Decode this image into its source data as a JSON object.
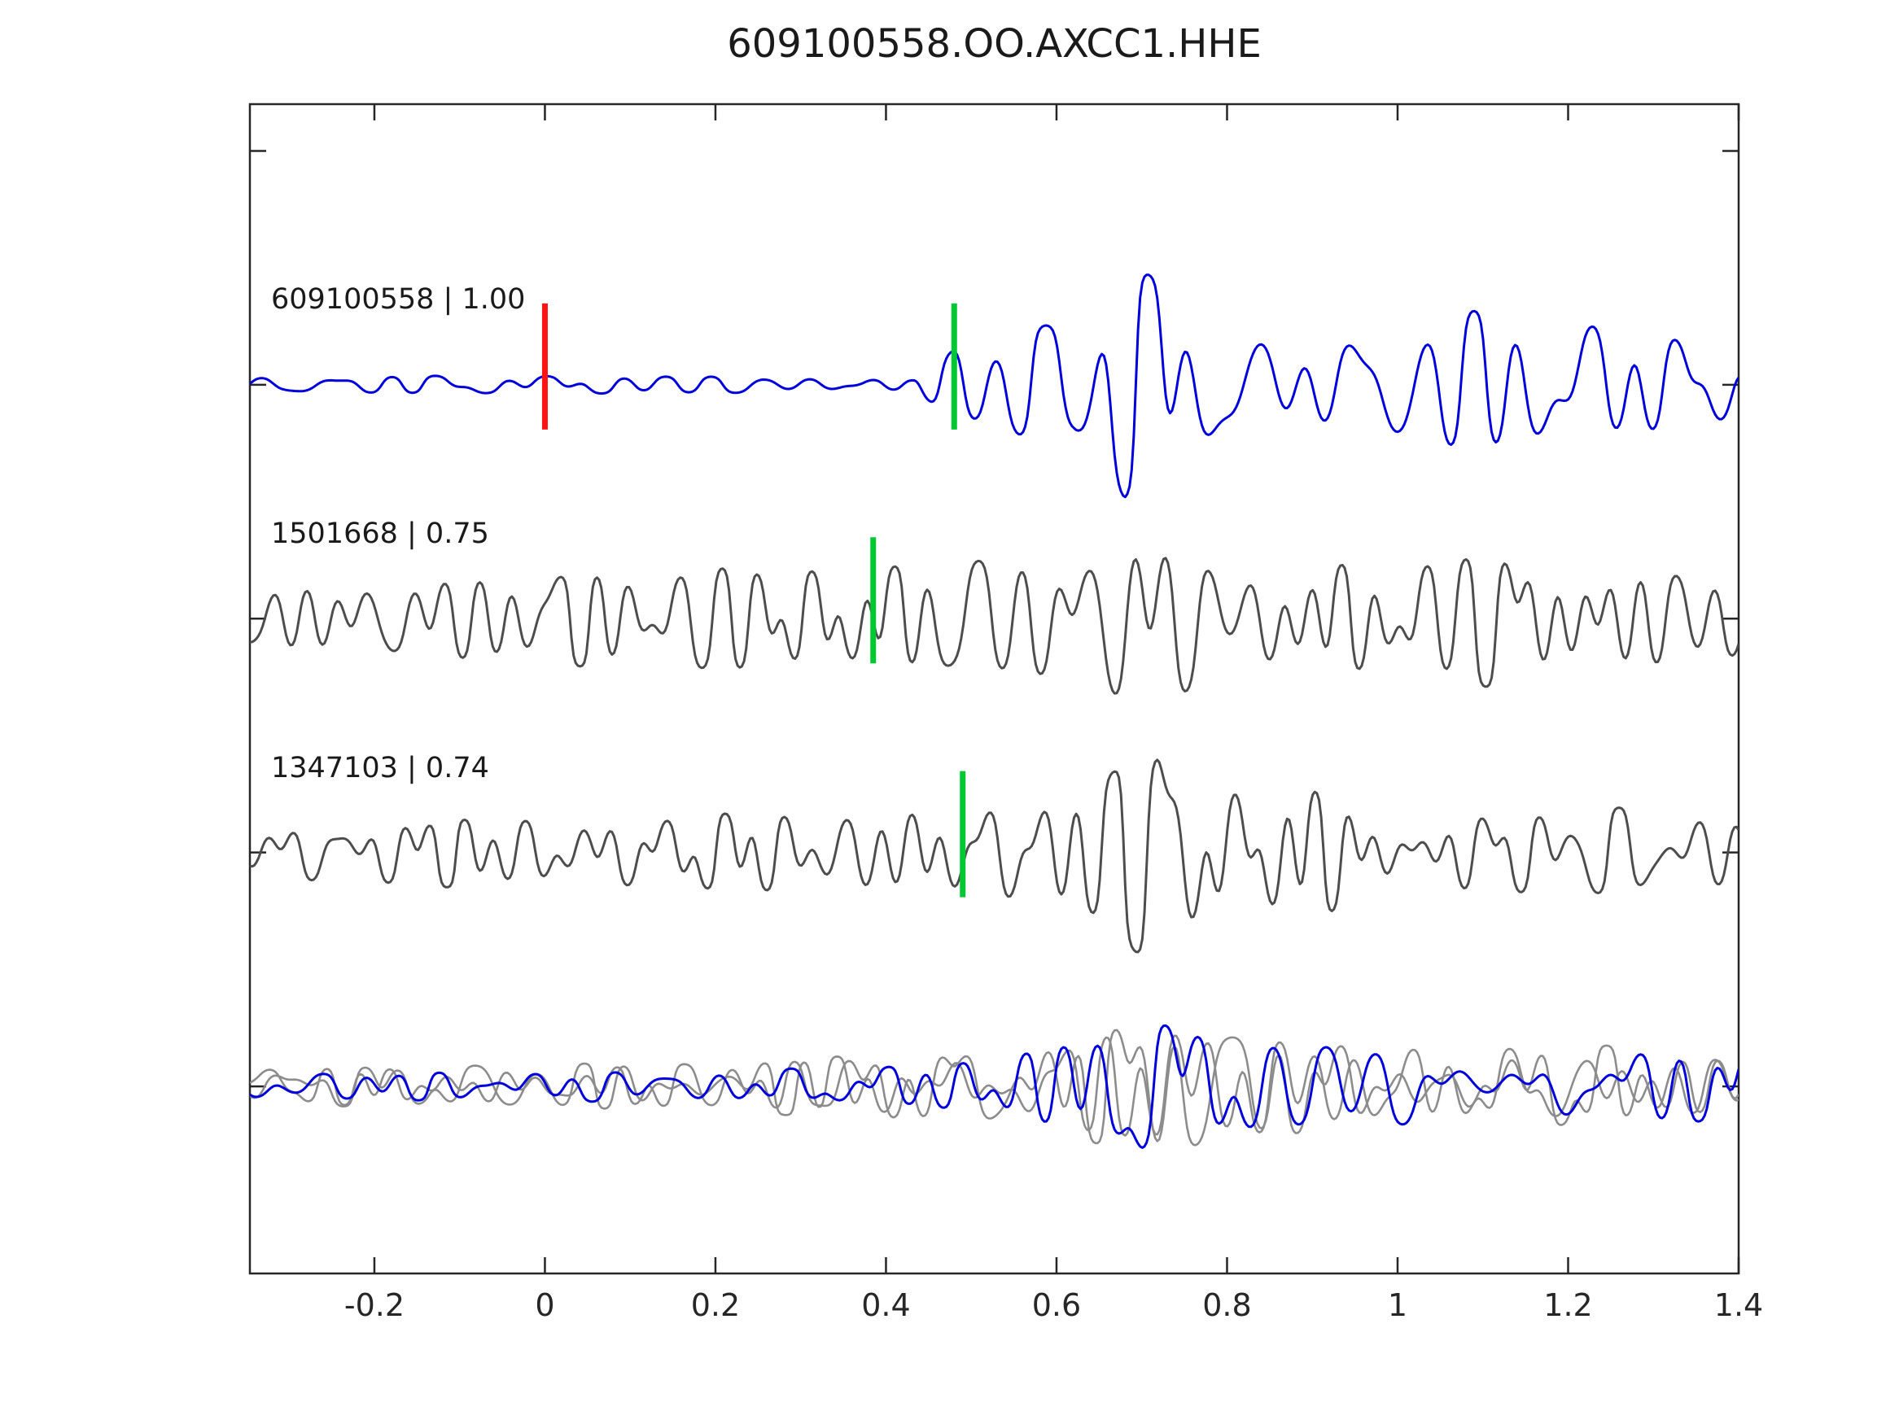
{
  "title": "609100558.OO.AXCC1.HHE",
  "labels": {
    "trace1": "609100558 | 1.00",
    "trace2": "1501668 | 0.75",
    "trace3": "1347103 | 0.74"
  },
  "colors": {
    "trace_blue": "#0000dd",
    "trace_dark": "#4d4d4d",
    "overlay_gray": "#8c8c8c",
    "pick_green": "#00c832",
    "template_red": "#ff1212",
    "axis": "#262626"
  },
  "chart_data": {
    "type": "line",
    "title": "609100558.OO.AXCC1.HHE",
    "xlabel": "",
    "ylabel": "",
    "grid": false,
    "legend_position": "none",
    "x_range": [
      -0.346,
      1.4
    ],
    "y_range": [
      -0.8,
      4.2
    ],
    "x_tick_values": [
      -0.2,
      0,
      0.2,
      0.4,
      0.6,
      0.8,
      1,
      1.2,
      1.4
    ],
    "x_tick_labels": [
      "-0.2",
      "0",
      "0.2",
      "0.4",
      "0.6",
      "0.8",
      "1",
      "1.2",
      "1.4"
    ],
    "y_tick_offsets": [
      0,
      1,
      2,
      3,
      4
    ],
    "series": [
      {
        "id": "trace-609100558",
        "name": "609100558 | 1.00",
        "event_id": "609100558",
        "correlation": 1.0,
        "color_key": "trace_blue",
        "offset": 3,
        "seed": 101,
        "freq": [
          5,
          26
        ],
        "comps": 42,
        "stroke": 3,
        "env": [
          [
            -0.35,
            13
          ],
          [
            0.43,
            12
          ],
          [
            0.48,
            50
          ],
          [
            0.56,
            75
          ],
          [
            0.62,
            80
          ],
          [
            0.68,
            150
          ],
          [
            0.75,
            130
          ],
          [
            0.83,
            90
          ],
          [
            0.92,
            80
          ],
          [
            1.02,
            95
          ],
          [
            1.12,
            100
          ],
          [
            1.22,
            92
          ],
          [
            1.32,
            75
          ],
          [
            1.4,
            62
          ]
        ],
        "markers": [
          {
            "x": 0.0,
            "color_key": "template_red",
            "kind": "template-time-marker"
          },
          {
            "x": 0.48,
            "color_key": "pick_green",
            "kind": "pick-time-marker"
          }
        ]
      },
      {
        "id": "trace-1501668",
        "name": "1501668 | 0.75",
        "event_id": "1501668",
        "correlation": 0.75,
        "color_key": "trace_dark",
        "offset": 2,
        "seed": 202,
        "freq": [
          7,
          32
        ],
        "comps": 46,
        "stroke": 3,
        "env": [
          [
            -0.35,
            55
          ],
          [
            0.0,
            60
          ],
          [
            0.2,
            70
          ],
          [
            0.35,
            65
          ],
          [
            0.5,
            80
          ],
          [
            0.6,
            85
          ],
          [
            0.7,
            140
          ],
          [
            0.78,
            90
          ],
          [
            0.9,
            75
          ],
          [
            1.05,
            80
          ],
          [
            1.15,
            95
          ],
          [
            1.3,
            75
          ],
          [
            1.4,
            60
          ]
        ],
        "markers": [
          {
            "x": 0.385,
            "color_key": "pick_green",
            "kind": "pick-time-marker"
          }
        ]
      },
      {
        "id": "trace-1347103",
        "name": "1347103 | 0.74",
        "event_id": "1347103",
        "correlation": 0.74,
        "color_key": "trace_dark",
        "offset": 1,
        "seed": 303,
        "freq": [
          7,
          32
        ],
        "comps": 46,
        "stroke": 3,
        "env": [
          [
            -0.35,
            40
          ],
          [
            0.1,
            50
          ],
          [
            0.3,
            55
          ],
          [
            0.45,
            70
          ],
          [
            0.55,
            75
          ],
          [
            0.65,
            90
          ],
          [
            0.72,
            150
          ],
          [
            0.8,
            100
          ],
          [
            0.88,
            95
          ],
          [
            1.0,
            60
          ],
          [
            1.15,
            55
          ],
          [
            1.3,
            60
          ],
          [
            1.4,
            55
          ]
        ],
        "markers": [
          {
            "x": 0.49,
            "color_key": "pick_green",
            "kind": "pick-time-marker"
          }
        ]
      },
      {
        "id": "overlay-gray-1",
        "name": "overlay-detection-1",
        "color_key": "overlay_gray",
        "offset": 0,
        "seed": 404,
        "freq": [
          6,
          30
        ],
        "comps": 40,
        "stroke": 2.6,
        "env": [
          [
            -0.35,
            25
          ],
          [
            0.2,
            30
          ],
          [
            0.4,
            45
          ],
          [
            0.55,
            55
          ],
          [
            0.65,
            75
          ],
          [
            0.72,
            100
          ],
          [
            0.8,
            75
          ],
          [
            0.95,
            60
          ],
          [
            1.1,
            58
          ],
          [
            1.25,
            52
          ],
          [
            1.4,
            42
          ]
        ],
        "markers": []
      },
      {
        "id": "overlay-gray-2",
        "name": "overlay-detection-2",
        "color_key": "overlay_gray",
        "offset": 0,
        "seed": 505,
        "freq": [
          6,
          30
        ],
        "comps": 40,
        "stroke": 2.6,
        "env": [
          [
            -0.35,
            25
          ],
          [
            0.2,
            32
          ],
          [
            0.4,
            42
          ],
          [
            0.55,
            52
          ],
          [
            0.65,
            70
          ],
          [
            0.73,
            95
          ],
          [
            0.82,
            72
          ],
          [
            0.95,
            58
          ],
          [
            1.1,
            55
          ],
          [
            1.25,
            50
          ],
          [
            1.4,
            40
          ]
        ],
        "markers": []
      },
      {
        "id": "overlay-blue-template",
        "name": "overlay-template",
        "color_key": "trace_blue",
        "offset": 0,
        "seed": 606,
        "freq": [
          5,
          26
        ],
        "comps": 40,
        "stroke": 3,
        "env": [
          [
            -0.35,
            18
          ],
          [
            0.2,
            22
          ],
          [
            0.45,
            28
          ],
          [
            0.55,
            45
          ],
          [
            0.65,
            70
          ],
          [
            0.7,
            90
          ],
          [
            0.8,
            70
          ],
          [
            0.95,
            55
          ],
          [
            1.1,
            60
          ],
          [
            1.25,
            55
          ],
          [
            1.4,
            45
          ]
        ],
        "markers": []
      }
    ]
  }
}
